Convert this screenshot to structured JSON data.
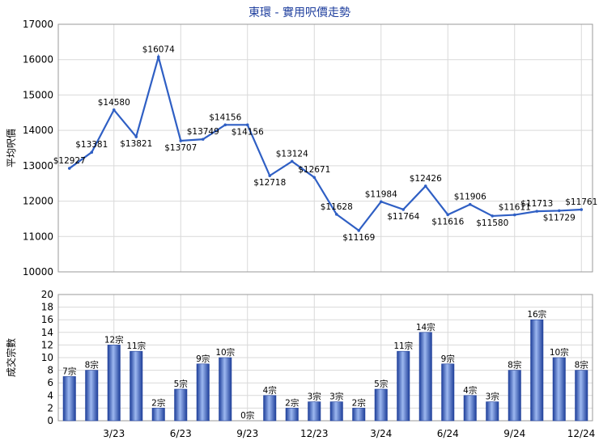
{
  "chart_data": [
    {
      "type": "line",
      "title": "東環 - 實用呎價走勢",
      "ylabel": "平均呎價",
      "ylim": [
        10000,
        17000
      ],
      "yticks": [
        10000,
        11000,
        12000,
        13000,
        14000,
        15000,
        16000,
        17000
      ],
      "grid": true,
      "series": [
        {
          "color": "#2f5fc4",
          "values": [
            12927,
            13381,
            14580,
            13821,
            16074,
            13707,
            13749,
            14156,
            14156,
            12718,
            13124,
            12671,
            11628,
            11169,
            11984,
            11764,
            12426,
            11616,
            11906,
            11580,
            11611,
            11713,
            11729,
            11761
          ],
          "labels": [
            "$12927",
            "$13381",
            "$14580",
            "$13821",
            "$16074",
            "$13707",
            "$13749",
            "$14156",
            "$14156",
            "$12718",
            "$13124",
            "$12671",
            "$11628",
            "$11169",
            "$11984",
            "$11764",
            "$12426",
            "$11616",
            "$11906",
            "$11580",
            "$11611",
            "$11713",
            "$11729",
            "$11761"
          ]
        }
      ]
    },
    {
      "type": "bar",
      "ylabel": "成交宗數",
      "ylim": [
        0,
        20
      ],
      "yticks": [
        0,
        2,
        4,
        6,
        8,
        10,
        12,
        14,
        16,
        18,
        20
      ],
      "grid": true,
      "xticks": [
        "3/23",
        "6/23",
        "9/23",
        "12/23",
        "3/24",
        "6/24",
        "9/24",
        "12/24"
      ],
      "series": [
        {
          "color": "#3a62c9",
          "values": [
            7,
            8,
            12,
            11,
            2,
            5,
            9,
            10,
            0,
            4,
            2,
            3,
            3,
            2,
            5,
            11,
            14,
            9,
            4,
            3,
            8,
            16,
            10,
            8
          ],
          "labels": [
            "7宗",
            "8宗",
            "12宗",
            "11宗",
            "2宗",
            "5宗",
            "9宗",
            "10宗",
            "0宗",
            "4宗",
            "2宗",
            "3宗",
            "3宗",
            "2宗",
            "5宗",
            "11宗",
            "14宗",
            "9宗",
            "4宗",
            "3宗",
            "8宗",
            "16宗",
            "10宗",
            "8宗"
          ]
        }
      ]
    }
  ]
}
